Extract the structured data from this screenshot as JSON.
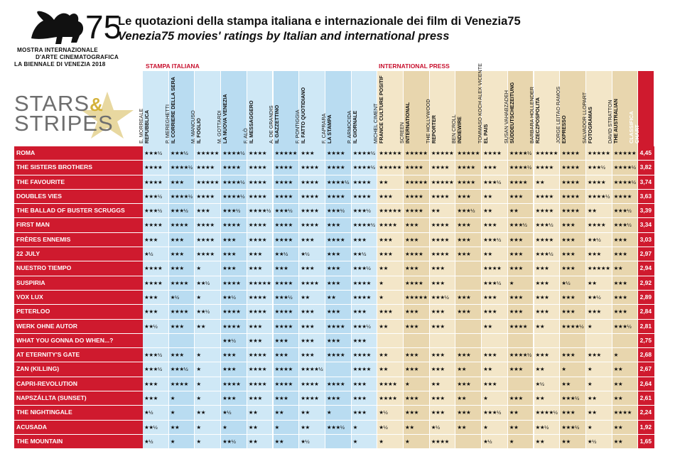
{
  "logo": {
    "number": "75",
    "lines": [
      "MOSTRA INTERNAZIONALE",
      "D'ARTE CINEMATOGRAFICA",
      "LA BIENNALE DI VENEZIA 2018"
    ]
  },
  "title_it": "Le quotazioni della stampa italiana e internazionale dei film di Venezia75",
  "title_en": "Venezia75 movies' ratings by Italian and international press",
  "stars_logo": {
    "line1": "STARS",
    "amp": "&",
    "line2": "STRIPES"
  },
  "groups": {
    "italian": "STAMPA ITALIANA",
    "international": "INTERNATIONAL PRESS"
  },
  "colors": {
    "red": "#cf1a2e",
    "blue_a": "#cfe8f6",
    "blue_b": "#b9dcf1",
    "beige_a": "#f3e6c8",
    "beige_b": "#e8d6ae",
    "white": "#ffffff"
  },
  "critics": [
    {
      "name": "E. MORREALE",
      "pub": "REPUBBLICA"
    },
    {
      "name": "P. MEREGHETTI",
      "pub": "IL CORRIERE DELLA SERA"
    },
    {
      "name": "M. MANCUSO",
      "pub": "IL FOGLIO"
    },
    {
      "name": "M. GOTTARDI",
      "pub": "LA NUOVA VENEZIA"
    },
    {
      "name": "F. ALÒ",
      "pub": "IL MESSAGGERO"
    },
    {
      "name": "A. DE GRANDIS",
      "pub": "IL GAZZETTINO"
    },
    {
      "name": "F. PONTIGGIA",
      "pub": "IL FATTO QUOTIDIANO"
    },
    {
      "name": "F. CAPRARA",
      "pub": "LA STAMPA"
    },
    {
      "name": "P. ARMOCIDA",
      "pub": "IL GIORNALE"
    },
    {
      "name": "MICHEL CIMENT",
      "pub": "FRANCE CULTURE POSITIF"
    },
    {
      "name": "SCREEN",
      "pub": "INTERNATIONAL"
    },
    {
      "name": "THE HOLLYWOOD",
      "pub": "REPORTER"
    },
    {
      "name": "BEN CROLL",
      "pub": "INDIEWIRE"
    },
    {
      "name": "TOMMASO KOCH ALEX VICENTE",
      "pub": "EL PAIS"
    },
    {
      "name": "SUSAN VAHABZADEH",
      "pub": "SÜDDEUTSCHEZEITUNG"
    },
    {
      "name": "BARBARA HOLLENDER",
      "pub": "RZECZPOSPOLITA"
    },
    {
      "name": "JORGE LEITAO RAMOS",
      "pub": "EXPRESSO"
    },
    {
      "name": "SALVADOR LLOPART",
      "pub": "FOTOGRAMAS"
    },
    {
      "name": "DAVID STRATTON",
      "pub": "THE AUSTRALIAN"
    }
  ],
  "classifica_label": {
    "line1": "CLASSIFICA",
    "line2": "CHART"
  },
  "films": [
    {
      "title": "ROMA",
      "score": "4,45",
      "ratings": [
        "★★★½",
        "★★★½",
        "★★★★★",
        "★★★★½",
        "★★★★",
        "★★★★★",
        "★★★",
        "★★★★",
        "★★★★½",
        "★★★★★",
        "★★★★★",
        "★★★★★",
        "★★★★★",
        "★★★★",
        "★★★★½",
        "★★★★★",
        "★★★★",
        "★★★★★",
        "★★★★★"
      ]
    },
    {
      "title": "THE SISTERS BROTHERS",
      "score": "3,82",
      "ratings": [
        "★★★★",
        "★★★★½",
        "★★★★",
        "★★★★",
        "★★★★",
        "★★★★",
        "★★★★",
        "★★★★",
        "★★★★½",
        "★★★★★",
        "★★★★",
        "★★★★",
        "★★★★",
        "★★★",
        "★★★★½",
        "★★★★",
        "★★★★",
        "★★★½",
        "★★★★½"
      ]
    },
    {
      "title": "THE FAVOURITE",
      "score": "3,74",
      "ratings": [
        "★★★★",
        "★★★",
        "★★★★★",
        "★★★★½",
        "★★★★",
        "★★★★",
        "★★★★",
        "★★★★½",
        "★★★★",
        "★★",
        "★★★★★",
        "★★★★★",
        "★★★★",
        "★★★½",
        "★★★★",
        "★★",
        "★★★★",
        "★★★★",
        "★★★★½"
      ]
    },
    {
      "title": "DOUBLES VIES",
      "score": "3,63",
      "ratings": [
        "★★★½",
        "★★★★½",
        "★★★★",
        "★★★★½",
        "★★★★",
        "★★★★",
        "★★★★",
        "★★★★",
        "★★★★",
        "★★★",
        "★★★★",
        "★★★★",
        "★★★",
        "★★",
        "★★★",
        "★★★★",
        "★★★★",
        "★★★★½",
        "★★★★"
      ]
    },
    {
      "title": "THE BALLAD OF BUSTER SCRUGGS",
      "score": "3,39",
      "ratings": [
        "★★★½",
        "★★★½",
        "★★★",
        "★★★½",
        "★★★★½",
        "★★★½",
        "★★★★",
        "★★★½",
        "★★★½",
        "★★★★★",
        "★★★★",
        "★★",
        "★★★½",
        "★★",
        "★★",
        "★★★★",
        "★★★★",
        "★★",
        "★★★½"
      ]
    },
    {
      "title": "FIRST MAN",
      "score": "3,34",
      "ratings": [
        "★★★★",
        "★★★★",
        "★★★★",
        "★★★★",
        "★★★★",
        "★★★★",
        "★★★★",
        "★★★",
        "★★★★½",
        "★★★★",
        "★★★",
        "★★★★",
        "★★★",
        "★★★",
        "★★★½",
        "★★★½",
        "★★★",
        "★★★★",
        "★★★½"
      ]
    },
    {
      "title": "FRÈRES ENNEMIS",
      "score": "3,03",
      "ratings": [
        "★★★",
        "★★★",
        "★★★★",
        "★★★",
        "★★★★",
        "★★★★",
        "★★★",
        "★★★★",
        "★★★",
        "★★★",
        "★★★",
        "★★★★",
        "★★★",
        "★★★½",
        "★★★",
        "★★★★",
        "★★★",
        "★★½",
        "★★★"
      ]
    },
    {
      "title": "22 JULY",
      "score": "2,97",
      "ratings": [
        "★½",
        "★★★",
        "★★★★",
        "★★★",
        "★★★",
        "★★½",
        "★½",
        "★★★",
        "★★½",
        "★★★",
        "★★★★",
        "★★★★",
        "★★★",
        "★★",
        "★★★",
        "★★★½",
        "★★★",
        "★★★",
        "★★★"
      ]
    },
    {
      "title": "NUESTRO TIEMPO",
      "score": "2,94",
      "ratings": [
        "★★★★",
        "★★★",
        "★",
        "★★★",
        "★★★",
        "★★★",
        "★★★",
        "★★★",
        "★★★½",
        "★★",
        "★★★",
        "★★★",
        "",
        "★★★★",
        "★★★",
        "★★★",
        "★★★",
        "★★★★★",
        "★★"
      ]
    },
    {
      "title": "SUSPIRIA",
      "score": "2,92",
      "ratings": [
        "★★★★",
        "★★★★",
        "★★½",
        "★★★★",
        "★★★★★",
        "★★★★",
        "★★★★",
        "★★★",
        "★★★★",
        "★",
        "★★★★",
        "★★★",
        "",
        "★★★½",
        "★",
        "★★★",
        "★½",
        "★★",
        "★★★"
      ]
    },
    {
      "title": "VOX LUX",
      "score": "2,89",
      "ratings": [
        "★★★",
        "★½",
        "★",
        "★★½",
        "★★★★",
        "★★★½",
        "★★",
        "★★",
        "★★★★",
        "★",
        "★★★★★",
        "★★★½",
        "★★★",
        "★★★",
        "★★★",
        "★★★",
        "★★★",
        "★★½",
        "★★★"
      ]
    },
    {
      "title": "PETERLOO",
      "score": "2,84",
      "ratings": [
        "★★★",
        "★★★★",
        "★★½",
        "★★★★",
        "★★★★",
        "★★★★",
        "★★★",
        "★★★",
        "★★★",
        "★★★",
        "★★★",
        "★★★",
        "★★★",
        "★★★",
        "★★★",
        "★★★",
        "★★★",
        "★★★",
        "★★★"
      ]
    },
    {
      "title": "WERK OHNE AUTOR",
      "score": "2,81",
      "ratings": [
        "★★½",
        "★★★",
        "★★",
        "★★★★",
        "★★★",
        "★★★★",
        "★★★",
        "★★★★",
        "★★★½",
        "★★",
        "★★★",
        "★★★",
        "",
        "★★",
        "★★★★",
        "★★",
        "★★★★½",
        "★",
        "★★★½"
      ]
    },
    {
      "title": "WHAT YOU GONNA DO WHEN...?",
      "score": "2,75",
      "ratings": [
        "",
        "",
        "",
        "★★½",
        "★★★",
        "★★★",
        "★★★",
        "★★★",
        "★★★",
        "",
        "",
        "",
        "",
        "",
        "",
        "",
        "",
        "",
        ""
      ]
    },
    {
      "title": "AT ETERNITY'S GATE",
      "score": "2,68",
      "ratings": [
        "★★★½",
        "★★★",
        "★",
        "★★★",
        "★★★★",
        "★★★",
        "★★★",
        "★★★★",
        "★★★★",
        "★★",
        "★★★",
        "★★★",
        "★★★",
        "★★★",
        "★★★★½",
        "★★★",
        "★★★",
        "★★★",
        "★"
      ]
    },
    {
      "title": "ZAN (KILLING)",
      "score": "2,67",
      "ratings": [
        "★★★½",
        "★★★½",
        "★",
        "★★★",
        "★★★★",
        "★★★★",
        "★★★★½",
        "",
        "★★★★",
        "★★",
        "★★★",
        "★★★",
        "★★",
        "★★",
        "★★★",
        "★★",
        "★",
        "★",
        "★★"
      ]
    },
    {
      "title": "CAPRI-REVOLUTION",
      "score": "2,64",
      "ratings": [
        "★★★",
        "★★★★",
        "★",
        "★★★★",
        "★★★★",
        "★★★★",
        "★★★★",
        "★★★★",
        "★★★",
        "★★★★",
        "★",
        "★★",
        "★★★",
        "★★★",
        "",
        "★½",
        "★★",
        "★",
        "★★"
      ]
    },
    {
      "title": "NAPSZÁLLTA (SUNSET)",
      "score": "2,61",
      "ratings": [
        "★★★",
        "★",
        "★",
        "★★★",
        "★★★",
        "★★★",
        "★★★★",
        "★★★",
        "★★★",
        "★★★★",
        "★★★",
        "★★★",
        "★★",
        "★",
        "★★★",
        "★★",
        "★★★½",
        "★★",
        "★★"
      ]
    },
    {
      "title": "THE NIGHTINGALE",
      "score": "2,24",
      "ratings": [
        "★½",
        "★",
        "★★",
        "★½",
        "★★",
        "★★",
        "★★",
        "★",
        "★★★",
        "★½",
        "★★★",
        "★★★",
        "★★★",
        "★★★½",
        "★★",
        "★★★★½",
        "★★★",
        "★★",
        "★★★★"
      ]
    },
    {
      "title": "ACUSADA",
      "score": "1,92",
      "ratings": [
        "★★½",
        "★★",
        "★",
        "★",
        "★★",
        "★",
        "★★",
        "★★★½",
        "★",
        "★½",
        "★★",
        "★½",
        "★★",
        "★",
        "★★",
        "★★½",
        "★★★½",
        "★",
        "★★"
      ]
    },
    {
      "title": "THE MOUNTAIN",
      "score": "1,65",
      "ratings": [
        "★½",
        "★",
        "★",
        "★★½",
        "★★",
        "★★",
        "★½",
        "",
        "★",
        "★",
        "★",
        "★★★★",
        "",
        "★½",
        "★",
        "★★",
        "★★",
        "★½",
        "★★"
      ]
    }
  ]
}
